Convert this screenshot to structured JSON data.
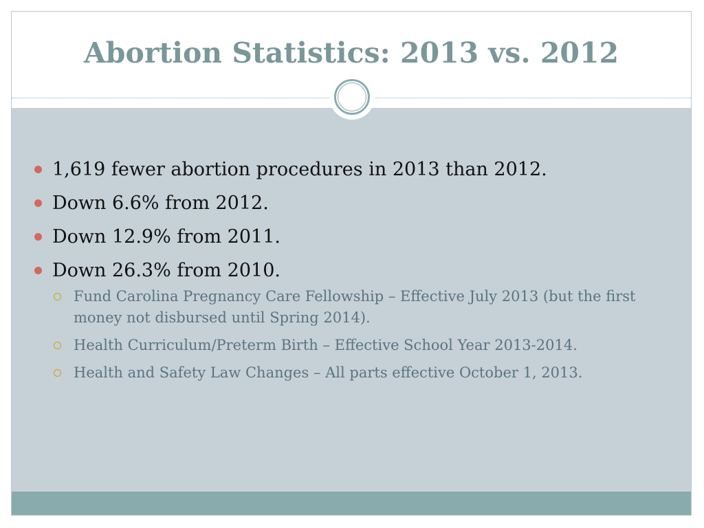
{
  "slide": {
    "title": "Abortion Statistics: 2013 vs. 2012",
    "bullets": [
      {
        "text": "1,619 fewer abortion procedures in 2013 than 2012."
      },
      {
        "text": "Down 6.6% from 2012."
      },
      {
        "text": "Down 12.9% from 2011."
      },
      {
        "text": "Down 26.3% from 2010."
      }
    ],
    "sub_bullets": [
      {
        "text": "Fund Carolina Pregnancy Care Fellowship – Effective July 2013 (but the first money not disbursed until Spring 2014)."
      },
      {
        "text": "Health Curriculum/Preterm Birth – Effective School Year 2013-2014."
      },
      {
        "text": "Health and Safety Law Changes – All parts effective October 1, 2013."
      }
    ]
  },
  "theme": {
    "title_color": "#7a9799",
    "body_background": "#c5d1d7",
    "footer_color": "#8aabae",
    "bullet_color": "#d4685d",
    "sub_bullet_color": "#c8a417",
    "sub_text_color": "#5c7381"
  },
  "icons": {
    "bullet": "filled-circle-bullet-icon",
    "sub_bullet": "ring-bullet-icon",
    "ornament": "double-ring-ornament-icon"
  }
}
